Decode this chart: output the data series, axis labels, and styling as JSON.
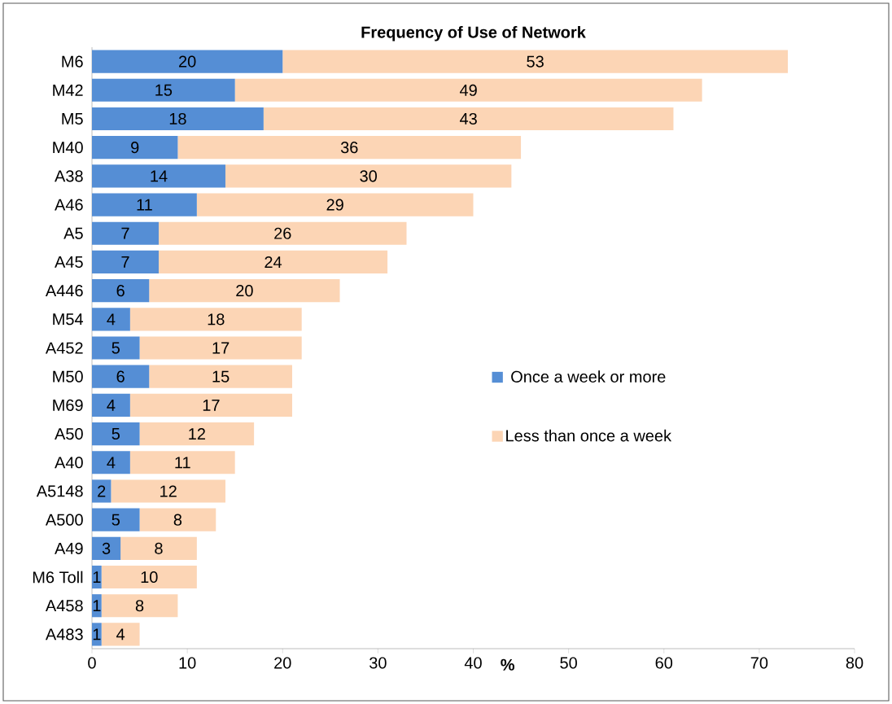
{
  "chart_data": {
    "type": "bar",
    "orientation": "horizontal",
    "stacked": true,
    "title": "Frequency of Use of Network",
    "xlabel": "%",
    "categories": [
      "M6",
      "M42",
      "M5",
      "M40",
      "A38",
      "A46",
      "A5",
      "A45",
      "A446",
      "M54",
      "A452",
      "M50",
      "M69",
      "A50",
      "A40",
      "A5148",
      "A500",
      "A49",
      "M6 Toll",
      "A458",
      "A483"
    ],
    "series": [
      {
        "name": "Once a week or more",
        "color": "#558ed5",
        "values": [
          20,
          15,
          18,
          9,
          14,
          11,
          7,
          7,
          6,
          4,
          5,
          6,
          4,
          5,
          4,
          2,
          5,
          3,
          1,
          1,
          1
        ]
      },
      {
        "name": "Less than once a week",
        "color": "#fcd5b5",
        "values": [
          53,
          49,
          43,
          36,
          30,
          29,
          26,
          24,
          20,
          18,
          17,
          15,
          17,
          12,
          11,
          12,
          8,
          8,
          10,
          8,
          4
        ]
      }
    ],
    "xlim": [
      0,
      80
    ],
    "xticks": [
      0,
      10,
      20,
      30,
      40,
      50,
      60,
      70,
      80
    ],
    "data_labels": true,
    "legend": "right",
    "grid": false
  }
}
